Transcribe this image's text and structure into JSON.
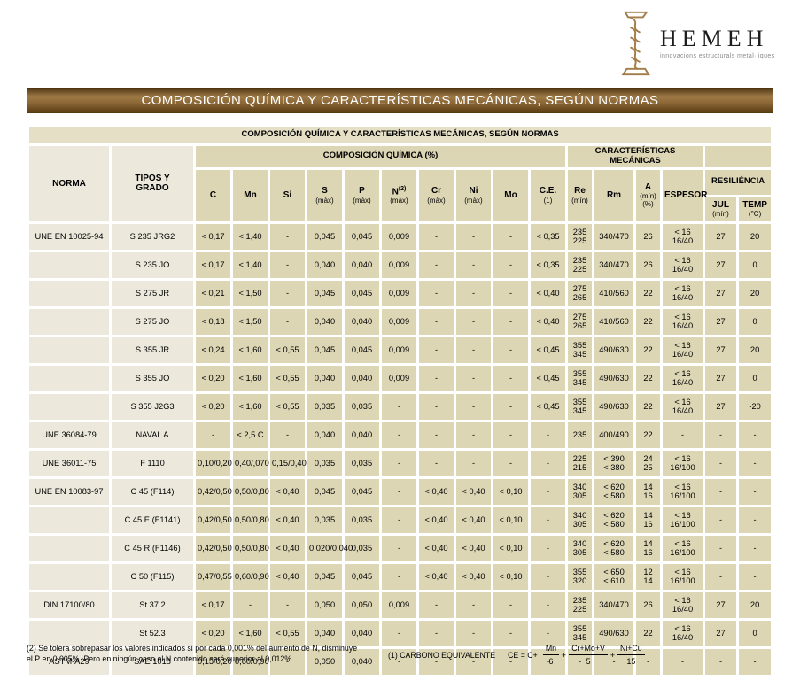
{
  "logo": {
    "name": "HEMEH",
    "tagline": "innovacions estructurals metàl·liques",
    "icon": "twisted-column-icon",
    "brand_color": "#a27c48"
  },
  "banner": {
    "title": "COMPOSICIÓN QUÍMICA Y CARACTERÍSTICAS MECÁNICAS, SEGÚN NORMAS"
  },
  "colors": {
    "banner_brown_dark": "#55390f",
    "banner_brown_light": "#9e7a46",
    "cell_beige": "#ddd6b5",
    "cell_light": "#ece9dc",
    "band_beige": "#e5dfc6"
  },
  "table": {
    "caption": "COMPOSICIÓN QUÍMICA Y CARACTERÍSTICAS MECÁNICAS, SEGÚN NORMAS",
    "col_norma": "NORMA",
    "col_tipos": "TIPOS Y\nGRADO",
    "group_quimica": "COMPOSICIÓN QUÍMICA  (%)",
    "group_mecanicas": "CARACTERÍSTICAS MECÁNICAS",
    "group_resiliencia": "RESILIÉNCIA",
    "columns": [
      {
        "key": "c",
        "label": "C"
      },
      {
        "key": "mn",
        "label": "Mn"
      },
      {
        "key": "si",
        "label": "Si"
      },
      {
        "key": "s",
        "label": "S",
        "sub": "(màx)"
      },
      {
        "key": "p",
        "label": "P",
        "sub": "(màx)"
      },
      {
        "key": "n",
        "label": "N",
        "sup": "(2)",
        "sub": "(màx)"
      },
      {
        "key": "cr",
        "label": "Cr",
        "sub": "(màx)"
      },
      {
        "key": "ni",
        "label": "Ni",
        "sub": "(màx)"
      },
      {
        "key": "mo",
        "label": "Mo"
      },
      {
        "key": "ce",
        "label": "C.E.",
        "sub": "(1)"
      },
      {
        "key": "re",
        "label": "Re",
        "sub": "(mín)"
      },
      {
        "key": "rm",
        "label": "Rm"
      },
      {
        "key": "a",
        "label": "A",
        "sub": "(mín)\n(%)"
      },
      {
        "key": "espesor",
        "label": "ESPESOR"
      },
      {
        "key": "jul",
        "label": "JUL",
        "sub": "(mín)"
      },
      {
        "key": "temp",
        "label": "TEMP",
        "sub": "(°C)"
      }
    ],
    "rows": [
      {
        "norma": "UNE EN 10025-94",
        "tipo": "S 235 JRG2",
        "values": [
          "< 0,17",
          "< 1,40",
          "-",
          "0,045",
          "0,045",
          "0,009",
          "-",
          "-",
          "-",
          "< 0,35",
          "235\n225",
          "340/470",
          "26",
          "< 16\n16/40",
          "27",
          "20"
        ]
      },
      {
        "norma": "",
        "tipo": "S 235 JO",
        "values": [
          "< 0,17",
          "< 1,40",
          "-",
          "0,040",
          "0,040",
          "0,009",
          "-",
          "-",
          "-",
          "< 0,35",
          "235\n225",
          "340/470",
          "26",
          "< 16\n16/40",
          "27",
          "0"
        ]
      },
      {
        "norma": "",
        "tipo": "S 275 JR",
        "values": [
          "< 0,21",
          "< 1,50",
          "-",
          "0,045",
          "0,045",
          "0,009",
          "-",
          "-",
          "-",
          "< 0,40",
          "275\n265",
          "410/560",
          "22",
          "< 16\n16/40",
          "27",
          "20"
        ]
      },
      {
        "norma": "",
        "tipo": "S 275 JO",
        "values": [
          "< 0,18",
          "< 1,50",
          "-",
          "0,040",
          "0,040",
          "0,009",
          "-",
          "-",
          "-",
          "< 0,40",
          "275\n265",
          "410/560",
          "22",
          "< 16\n16/40",
          "27",
          "0"
        ]
      },
      {
        "norma": "",
        "tipo": "S 355 JR",
        "values": [
          "< 0,24",
          "< 1,60",
          "< 0,55",
          "0,045",
          "0,045",
          "0,009",
          "-",
          "-",
          "-",
          "< 0,45",
          "355\n345",
          "490/630",
          "22",
          "< 16\n16/40",
          "27",
          "20"
        ]
      },
      {
        "norma": "",
        "tipo": "S 355 JO",
        "values": [
          "< 0,20",
          "< 1,60",
          "< 0,55",
          "0,040",
          "0,040",
          "0,009",
          "-",
          "-",
          "-",
          "< 0,45",
          "355\n345",
          "490/630",
          "22",
          "< 16\n16/40",
          "27",
          "0"
        ]
      },
      {
        "norma": "",
        "tipo": "S 355 J2G3",
        "values": [
          "< 0,20",
          "< 1,60",
          "< 0,55",
          "0,035",
          "0,035",
          "-",
          "-",
          "-",
          "-",
          "< 0,45",
          "355\n345",
          "490/630",
          "22",
          "< 16\n16/40",
          "27",
          "-20"
        ]
      },
      {
        "norma": "UNE 36084-79",
        "tipo": "NAVAL A",
        "values": [
          "-",
          "< 2,5 C",
          "-",
          "0,040",
          "0,040",
          "-",
          "-",
          "-",
          "-",
          "-",
          "235",
          "400/490",
          "22",
          "-",
          "-",
          "-"
        ]
      },
      {
        "norma": "UNE 36011-75",
        "tipo": "F 1110",
        "values": [
          "0,10/0,20",
          "0,40/,070",
          "0,15/0,40",
          "0,035",
          "0,035",
          "-",
          "-",
          "-",
          "-",
          "-",
          "225\n215",
          "< 390\n< 380",
          "24\n25",
          "< 16\n16/100",
          "-",
          "-"
        ]
      },
      {
        "norma": "UNE EN 10083-97",
        "tipo": "C 45 (F114)",
        "values": [
          "0,42/0,50",
          "0,50/0,80",
          "< 0,40",
          "0,045",
          "0,045",
          "-",
          "< 0,40",
          "< 0,40",
          "< 0,10",
          "-",
          "340\n305",
          "< 620\n< 580",
          "14\n16",
          "< 16\n16/100",
          "-",
          "-"
        ]
      },
      {
        "norma": "",
        "tipo": "C 45 E (F1141)",
        "values": [
          "0,42/0,50",
          "0,50/0,80",
          "< 0,40",
          "0,035",
          "0,035",
          "-",
          "< 0,40",
          "< 0,40",
          "< 0,10",
          "-",
          "340\n305",
          "< 620\n< 580",
          "14\n16",
          "< 16\n16/100",
          "-",
          "-"
        ]
      },
      {
        "norma": "",
        "tipo": "C 45 R (F1146)",
        "values": [
          "0,42/0,50",
          "0,50/0,80",
          "< 0,40",
          "0,020/0,040",
          "0,035",
          "-",
          "< 0,40",
          "< 0,40",
          "< 0,10",
          "-",
          "340\n305",
          "< 620\n< 580",
          "14\n16",
          "< 16\n16/100",
          "-",
          "-"
        ]
      },
      {
        "norma": "",
        "tipo": "C 50 (F115)",
        "values": [
          "0,47/0,55",
          "0,60/0,90",
          "< 0,40",
          "0,045",
          "0,045",
          "-",
          "< 0,40",
          "< 0,40",
          "< 0,10",
          "-",
          "355\n320",
          "< 650\n< 610",
          "12\n14",
          "< 16\n16/100",
          "-",
          "-"
        ]
      },
      {
        "norma": "DIN 17100/80",
        "tipo": "St  37.2",
        "values": [
          "< 0,17",
          "-",
          "-",
          "0,050",
          "0,050",
          "0,009",
          "-",
          "-",
          "-",
          "-",
          "235\n225",
          "340/470",
          "26",
          "< 16\n16/40",
          "27",
          "20"
        ]
      },
      {
        "norma": "",
        "tipo": "St 52.3",
        "values": [
          "< 0,20",
          "< 1,60",
          "< 0,55",
          "0,040",
          "0,040",
          "-",
          "-",
          "-",
          "-",
          "-",
          "355\n345",
          "490/630",
          "22",
          "< 16\n16/40",
          "27",
          "0"
        ]
      },
      {
        "norma": "ASTM-A29",
        "tipo": "SAE 1018",
        "values": [
          "0,15/0,20",
          "0,60/0,90",
          "-",
          "0,050",
          "0,040",
          "-",
          "-",
          "-",
          "-",
          "-",
          "-",
          "-",
          "-",
          "-",
          "-",
          "-"
        ]
      }
    ]
  },
  "footnotes": {
    "note2": "(2) Se tolera sobrepasar los valores indicados si por cada 0,001% del aumento de N, disminuye\nel P en 0,005%. Pero en ningún caso el N contenido será superior al 0,012%.",
    "note1_label": "(1) CARBONO EQUIVALENTE",
    "formula": {
      "lead": "CE = C+",
      "plus": "+",
      "fractions": [
        {
          "num": "Mn",
          "den": "6"
        },
        {
          "num": "Cr+Mo+V",
          "den": "5"
        },
        {
          "num": "Ni+Cu",
          "den": "15"
        }
      ]
    }
  }
}
